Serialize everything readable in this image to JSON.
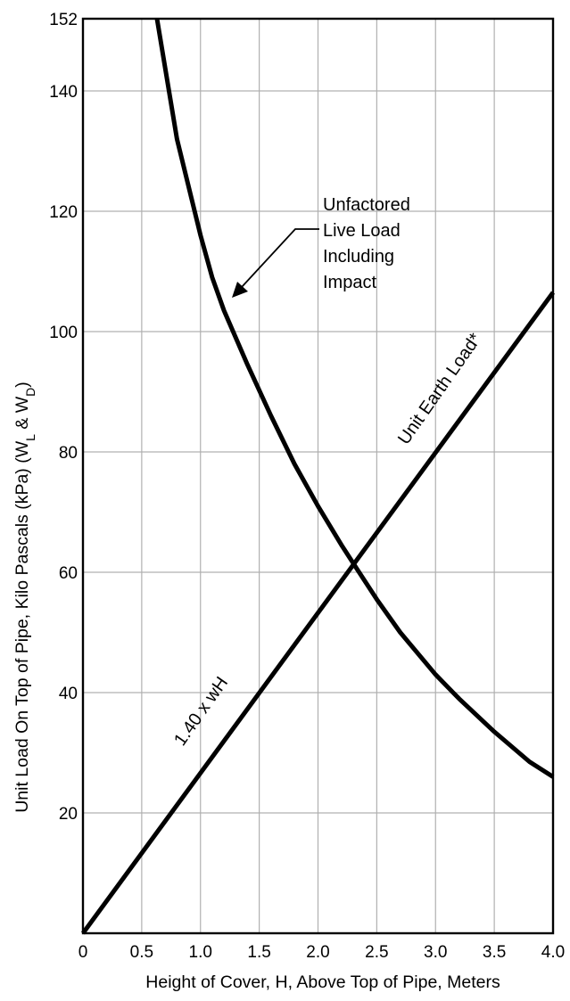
{
  "chart_data": {
    "type": "line",
    "xlabel": "Height of Cover, H, Above Top of Pipe, Meters",
    "ylabel_main": "Unit Load On Top of Pipe, Kilo Pascals (kPa) (W",
    "ylabel_sub1": "L",
    "ylabel_mid": " & W",
    "ylabel_sub2": "D",
    "ylabel_end": ")",
    "xlim": [
      0,
      4.0
    ],
    "ylim": [
      0,
      152
    ],
    "x_ticks": [
      "0",
      "0.5",
      "1.0",
      "1.5",
      "2.0",
      "2.5",
      "3.0",
      "3.5",
      "4.0"
    ],
    "y_ticks": [
      "20",
      "40",
      "60",
      "80",
      "100",
      "120",
      "140",
      "152"
    ],
    "grid": true,
    "series": [
      {
        "name": "Unfactored Live Load Including Impact",
        "x": [
          0.63,
          0.8,
          1.0,
          1.1,
          1.2,
          1.4,
          1.6,
          1.8,
          2.0,
          2.2,
          2.3,
          2.5,
          2.7,
          3.0,
          3.2,
          3.5,
          3.8,
          4.0
        ],
        "y": [
          152,
          132,
          116,
          109,
          103.5,
          94.5,
          86,
          78,
          71,
          64.5,
          61.5,
          55.5,
          50,
          43,
          39,
          33.5,
          28.5,
          26
        ]
      },
      {
        "name": "Unit Earth Load*",
        "x": [
          0,
          4.0
        ],
        "y": [
          0,
          106.5
        ]
      }
    ],
    "annotations": {
      "live_load_lines": [
        "Unfactored",
        "Live Load",
        "Including",
        "Impact"
      ],
      "earth_load_label": "Unit Earth Load*",
      "formula_label": "1.40 x wH"
    }
  }
}
